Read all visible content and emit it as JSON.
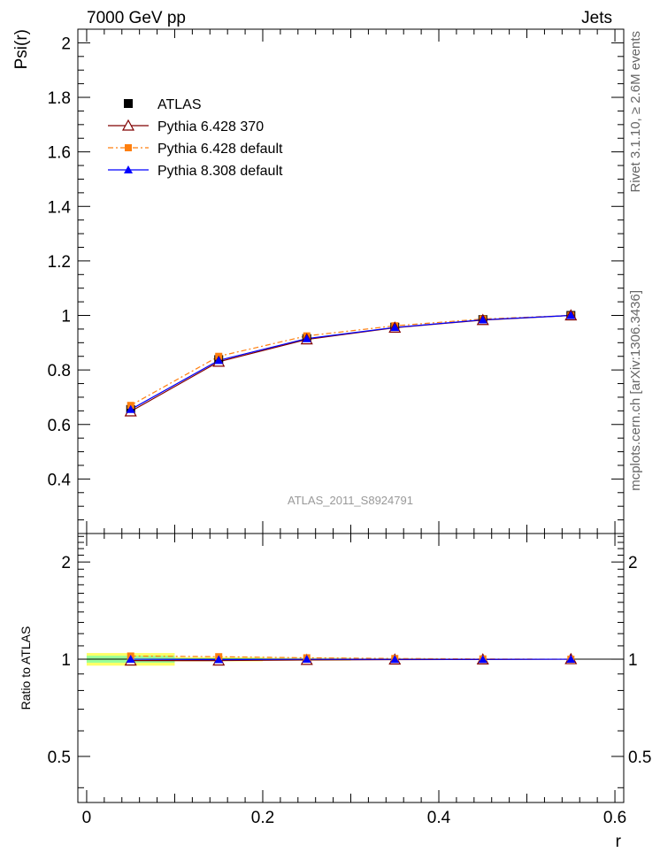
{
  "header": {
    "left_title": "7000 GeV pp",
    "right_title": "Jets",
    "side_text_1": "Rivet 3.1.10, ≥ 2.6M events",
    "side_text_2": "mcplots.cern.ch [arXiv:1306.3436]",
    "analysis_label": "ATLAS_2011_S8924791"
  },
  "colors": {
    "atlas": "#000000",
    "pythia6_370": "#800000",
    "pythia6_default": "#ff7f0e",
    "pythia8_default": "#0000ff",
    "band_green": "#99ff99",
    "band_yellow": "#ffff66"
  },
  "chart_data": [
    {
      "type": "line",
      "panel": "main",
      "ylabel": "Psi(r)",
      "xlim": [
        -0.01,
        0.61
      ],
      "ylim": [
        0.2,
        2.05
      ],
      "y_ticks": [
        0.4,
        0.6,
        0.8,
        1,
        1.2,
        1.4,
        1.6,
        1.8,
        2
      ],
      "y_tick_labels": [
        "0.4",
        "0.6",
        "0.8",
        "1",
        "1.2",
        "1.4",
        "1.6",
        "1.8",
        "2"
      ],
      "legend_position": "top-left",
      "x": [
        0.05,
        0.15,
        0.25,
        0.35,
        0.45,
        0.55
      ],
      "series": [
        {
          "name": "ATLAS",
          "values": [
            0.655,
            0.838,
            0.915,
            0.957,
            0.985,
            1.0
          ]
        },
        {
          "name": "Pythia 6.428 370",
          "values": [
            0.648,
            0.83,
            0.912,
            0.955,
            0.983,
            1.0
          ]
        },
        {
          "name": "Pythia 6.428 default",
          "values": [
            0.67,
            0.85,
            0.925,
            0.962,
            0.987,
            1.0
          ]
        },
        {
          "name": "Pythia 8.308 default",
          "values": [
            0.655,
            0.835,
            0.915,
            0.956,
            0.984,
            1.0
          ]
        }
      ]
    },
    {
      "type": "line",
      "panel": "ratio",
      "ylabel": "Ratio to ATLAS",
      "xlabel": "r",
      "xlim": [
        -0.01,
        0.61
      ],
      "x_ticks": [
        0,
        0.2,
        0.4,
        0.6
      ],
      "x_tick_labels": [
        "0",
        "0.2",
        "0.4",
        "0.6"
      ],
      "y_ticks": [
        0.5,
        1,
        2
      ],
      "y_tick_labels": [
        "0.5",
        "1",
        "2"
      ],
      "x": [
        0.05,
        0.15,
        0.25,
        0.35,
        0.45,
        0.55
      ],
      "bands": [
        {
          "x": [
            0.0,
            0.1
          ],
          "yellow": [
            0.955,
            1.045
          ],
          "green": [
            0.975,
            1.025
          ]
        },
        {
          "x": [
            0.1,
            0.2
          ],
          "yellow": [
            0.985,
            1.015
          ],
          "green": [
            0.992,
            1.008
          ]
        },
        {
          "x": [
            0.2,
            0.3
          ],
          "yellow": [
            0.99,
            1.01
          ],
          "green": [
            0.995,
            1.005
          ]
        },
        {
          "x": [
            0.3,
            0.4
          ],
          "yellow": [
            0.994,
            1.006
          ],
          "green": [
            0.997,
            1.003
          ]
        }
      ],
      "series": [
        {
          "name": "Pythia 6.428 370",
          "values": [
            0.99,
            0.99,
            0.995,
            0.997,
            0.998,
            1.0
          ]
        },
        {
          "name": "Pythia 6.428 default",
          "values": [
            1.023,
            1.018,
            1.01,
            1.005,
            1.002,
            1.0
          ]
        },
        {
          "name": "Pythia 8.308 default",
          "values": [
            1.0,
            0.997,
            1.0,
            0.999,
            0.999,
            1.0
          ]
        }
      ]
    }
  ]
}
